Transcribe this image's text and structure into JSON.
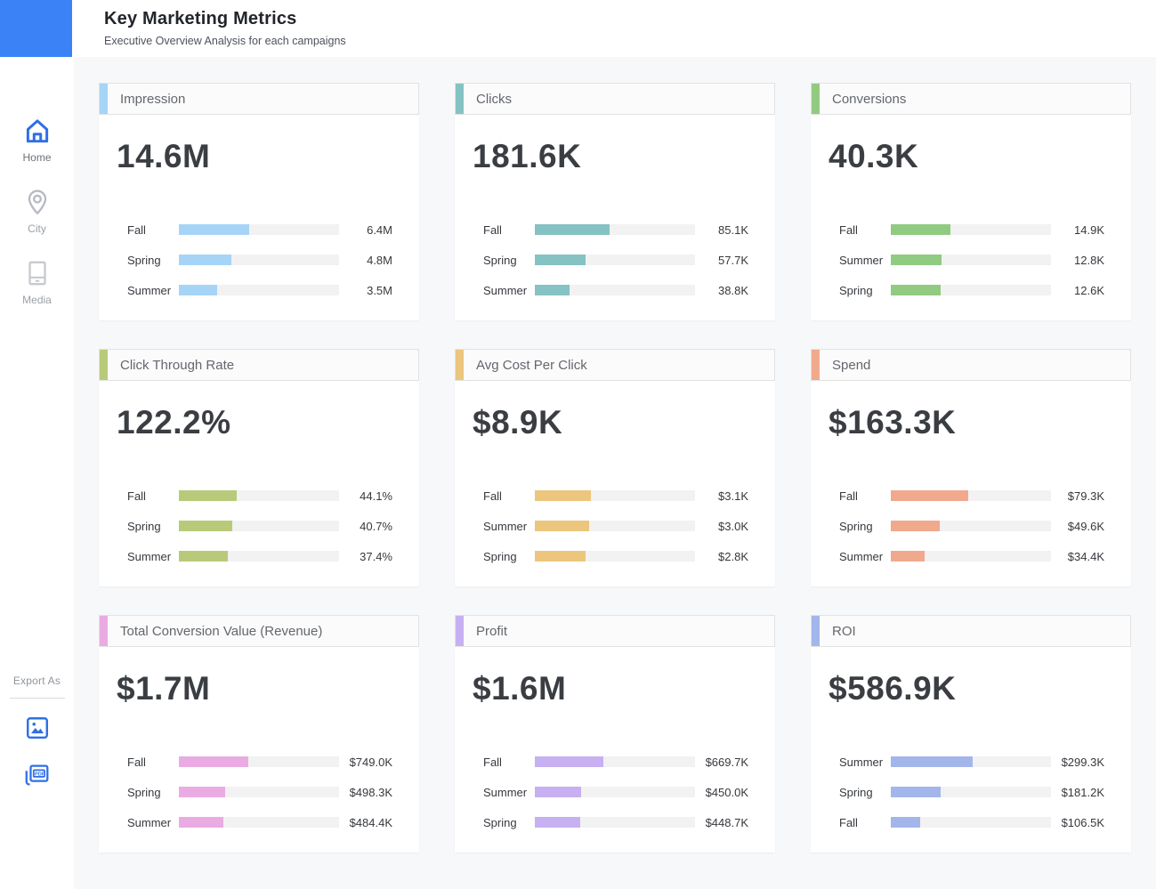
{
  "header": {
    "title": "Key Marketing Metrics",
    "subtitle": "Executive Overview Analysis for each campaigns"
  },
  "sidebar": {
    "items": [
      {
        "label": "Home",
        "icon": "home-icon",
        "active": true
      },
      {
        "label": "City",
        "icon": "map-pin-icon",
        "active": false
      },
      {
        "label": "Media",
        "icon": "media-icon",
        "active": false
      }
    ],
    "export_label": "Export As",
    "export_options": [
      {
        "icon": "image-export-icon"
      },
      {
        "icon": "pdf-export-icon"
      }
    ]
  },
  "colors": {
    "brand_blue": "#3b82f6",
    "icon_blue": "#2e6fe8",
    "background": "#f7f8fa",
    "bar_track": "#f2f2f2"
  },
  "chart_data": [
    {
      "type": "bar",
      "orientation": "horizontal",
      "title": "Impression",
      "value": "14.6M",
      "total": 14.6,
      "color": "#a6d4f7",
      "categories": [
        "Fall",
        "Spring",
        "Summer"
      ],
      "values": [
        6.4,
        4.8,
        3.5
      ],
      "value_labels": [
        "6.4M",
        "4.8M",
        "3.5M"
      ]
    },
    {
      "type": "bar",
      "orientation": "horizontal",
      "title": "Clicks",
      "value": "181.6K",
      "total": 181.6,
      "color": "#85c2c3",
      "categories": [
        "Fall",
        "Spring",
        "Summer"
      ],
      "values": [
        85.1,
        57.7,
        38.8
      ],
      "value_labels": [
        "85.1K",
        "57.7K",
        "38.8K"
      ]
    },
    {
      "type": "bar",
      "orientation": "horizontal",
      "title": "Conversions",
      "value": "40.3K",
      "total": 40.3,
      "color": "#91cb81",
      "categories": [
        "Fall",
        "Summer",
        "Spring"
      ],
      "values": [
        14.9,
        12.8,
        12.6
      ],
      "value_labels": [
        "14.9K",
        "12.8K",
        "12.6K"
      ]
    },
    {
      "type": "bar",
      "orientation": "horizontal",
      "title": "Click Through Rate",
      "value": "122.2%",
      "total": 122.2,
      "color": "#b8ca7a",
      "categories": [
        "Fall",
        "Spring",
        "Summer"
      ],
      "values": [
        44.1,
        40.7,
        37.4
      ],
      "value_labels": [
        "44.1%",
        "40.7%",
        "37.4%"
      ]
    },
    {
      "type": "bar",
      "orientation": "horizontal",
      "title": "Avg Cost Per Click",
      "value": "$8.9K",
      "total": 8.9,
      "color": "#ecc67d",
      "categories": [
        "Fall",
        "Summer",
        "Spring"
      ],
      "values": [
        3.1,
        3.0,
        2.8
      ],
      "value_labels": [
        "$3.1K",
        "$3.0K",
        "$2.8K"
      ]
    },
    {
      "type": "bar",
      "orientation": "horizontal",
      "title": "Spend",
      "value": "$163.3K",
      "total": 163.3,
      "color": "#f1a98e",
      "categories": [
        "Fall",
        "Spring",
        "Summer"
      ],
      "values": [
        79.3,
        49.6,
        34.4
      ],
      "value_labels": [
        "$79.3K",
        "$49.6K",
        "$34.4K"
      ]
    },
    {
      "type": "bar",
      "orientation": "horizontal",
      "title": "Total Conversion Value (Revenue)",
      "value": "$1.7M",
      "total": 1731.7,
      "color": "#eaabe3",
      "categories": [
        "Fall",
        "Spring",
        "Summer"
      ],
      "values": [
        749.0,
        498.3,
        484.4
      ],
      "value_labels": [
        "$749.0K",
        "$498.3K",
        "$484.4K"
      ]
    },
    {
      "type": "bar",
      "orientation": "horizontal",
      "title": "Profit",
      "value": "$1.6M",
      "total": 1568.4,
      "color": "#c6b0f2",
      "categories": [
        "Fall",
        "Summer",
        "Spring"
      ],
      "values": [
        669.7,
        450.0,
        448.7
      ],
      "value_labels": [
        "$669.7K",
        "$450.0K",
        "$448.7K"
      ]
    },
    {
      "type": "bar",
      "orientation": "horizontal",
      "title": "ROI",
      "value": "$586.9K",
      "total": 586.9,
      "color": "#a2b6ec",
      "categories": [
        "Summer",
        "Spring",
        "Fall"
      ],
      "values": [
        299.3,
        181.2,
        106.5
      ],
      "value_labels": [
        "$299.3K",
        "$181.2K",
        "$106.5K"
      ]
    }
  ]
}
